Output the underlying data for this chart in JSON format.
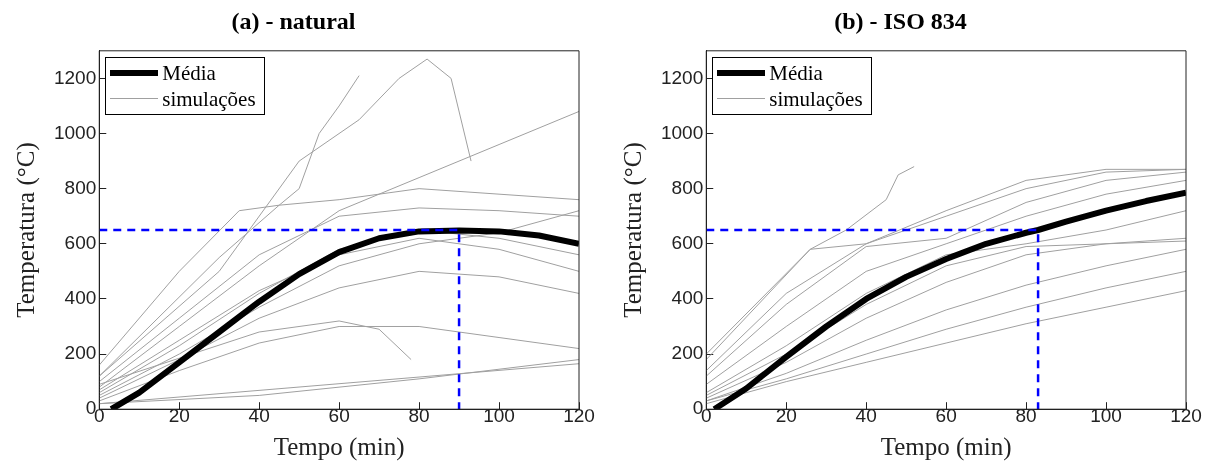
{
  "chart_data": [
    {
      "type": "line",
      "title": "(a) - natural",
      "xlabel": "Tempo (min)",
      "ylabel": "Temperatura (°C)",
      "xlim": [
        0,
        120
      ],
      "ylim": [
        0,
        1300
      ],
      "xticks": [
        0,
        20,
        40,
        60,
        80,
        100,
        120
      ],
      "yticks": [
        0,
        200,
        400,
        600,
        800,
        1000,
        1200
      ],
      "grid": false,
      "legend": "top left",
      "marker": "none",
      "series": [
        {
          "name": "Média",
          "color": "#000000",
          "x": [
            3,
            10,
            20,
            30,
            40,
            50,
            60,
            70,
            80,
            90,
            100,
            110,
            120
          ],
          "values": [
            0,
            60,
            170,
            280,
            390,
            490,
            570,
            620,
            645,
            648,
            645,
            630,
            600
          ]
        },
        {
          "name": "simulações",
          "color": "#a0a0a0",
          "x": [
            0,
            20,
            35,
            45,
            60,
            80,
            100,
            120
          ],
          "values": [
            160,
            500,
            720,
            740,
            760,
            800,
            780,
            760
          ]
        },
        {
          "color": "#a0a0a0",
          "x": [
            0,
            20,
            40,
            60,
            80,
            100,
            120
          ],
          "values": [
            100,
            330,
            560,
            700,
            730,
            720,
            700
          ]
        },
        {
          "color": "#a0a0a0",
          "x": [
            0,
            20,
            40,
            60,
            80,
            100,
            120
          ],
          "values": [
            60,
            230,
            420,
            580,
            650,
            620,
            560
          ]
        },
        {
          "color": "#a0a0a0",
          "x": [
            0,
            20,
            40,
            60,
            80,
            100,
            120
          ],
          "values": [
            40,
            180,
            330,
            440,
            500,
            480,
            420
          ]
        },
        {
          "color": "#a0a0a0",
          "x": [
            0,
            20,
            40,
            60,
            80,
            100,
            120
          ],
          "values": [
            30,
            140,
            240,
            300,
            300,
            260,
            220
          ]
        },
        {
          "color": "#a0a0a0",
          "x": [
            0,
            40,
            80,
            120
          ],
          "values": [
            20,
            50,
            110,
            180
          ]
        },
        {
          "color": "#a0a0a0",
          "x": [
            0,
            120
          ],
          "values": [
            20,
            165
          ]
        },
        {
          "color": "#a0a0a0",
          "x": [
            0,
            30,
            50,
            65,
            75,
            82,
            88,
            93
          ],
          "values": [
            120,
            500,
            900,
            1050,
            1200,
            1270,
            1200,
            900
          ]
        },
        {
          "color": "#a0a0a0",
          "x": [
            0,
            40,
            60,
            70,
            78
          ],
          "values": [
            90,
            280,
            320,
            290,
            180
          ]
        },
        {
          "color": "#a0a0a0",
          "x": [
            0,
            20,
            40,
            60,
            80,
            100,
            120
          ],
          "values": [
            80,
            300,
            520,
            720,
            840,
            960,
            1080
          ]
        },
        {
          "color": "#a0a0a0",
          "x": [
            0,
            20,
            40,
            60,
            80,
            100,
            120
          ],
          "values": [
            70,
            250,
            430,
            560,
            620,
            580,
            500
          ]
        },
        {
          "color": "#a0a0a0",
          "x": [
            0,
            30,
            45,
            50,
            55,
            60,
            65
          ],
          "values": [
            120,
            550,
            740,
            800,
            1000,
            1100,
            1210
          ]
        },
        {
          "color": "#a0a0a0",
          "x": [
            0,
            20,
            40,
            60,
            80,
            100,
            120
          ],
          "values": [
            50,
            200,
            370,
            520,
            600,
            640,
            720
          ]
        },
        {
          "color": "#0000ff",
          "line_style": "dashed",
          "x": [
            0,
            90,
            90
          ],
          "values": [
            650,
            650,
            0
          ]
        }
      ]
    },
    {
      "type": "line",
      "title": "(b) - ISO 834",
      "xlabel": "Tempo (min)",
      "ylabel": "Temperatura (°C)",
      "xlim": [
        0,
        120
      ],
      "ylim": [
        0,
        1300
      ],
      "xticks": [
        0,
        20,
        40,
        60,
        80,
        100,
        120
      ],
      "yticks": [
        0,
        200,
        400,
        600,
        800,
        1000,
        1200
      ],
      "grid": false,
      "legend": "top left",
      "marker": "none",
      "series": [
        {
          "name": "Média",
          "color": "#000000",
          "x": [
            2,
            10,
            20,
            30,
            40,
            50,
            60,
            70,
            80,
            83,
            90,
            100,
            110,
            120
          ],
          "values": [
            0,
            75,
            190,
            300,
            400,
            480,
            545,
            600,
            640,
            650,
            680,
            720,
            755,
            785
          ]
        },
        {
          "name": "simulações",
          "color": "#a0a0a0",
          "x": [
            0,
            26,
            35,
            45,
            48,
            52
          ],
          "values": [
            200,
            580,
            650,
            760,
            850,
            880
          ]
        },
        {
          "color": "#a0a0a0",
          "x": [
            0,
            26,
            40,
            60,
            80,
            100,
            120
          ],
          "values": [
            180,
            580,
            600,
            720,
            830,
            870,
            870
          ]
        },
        {
          "color": "#a0a0a0",
          "x": [
            0,
            20,
            40,
            60,
            80,
            100,
            120
          ],
          "values": [
            120,
            380,
            590,
            620,
            750,
            830,
            860
          ]
        },
        {
          "color": "#a0a0a0",
          "x": [
            0,
            20,
            40,
            60,
            80,
            100,
            120
          ],
          "values": [
            90,
            300,
            500,
            600,
            700,
            780,
            830
          ]
        },
        {
          "color": "#a0a0a0",
          "x": [
            0,
            20,
            40,
            60,
            80,
            100,
            120
          ],
          "values": [
            60,
            230,
            420,
            560,
            600,
            650,
            720
          ]
        },
        {
          "color": "#a0a0a0",
          "x": [
            0,
            20,
            40,
            60,
            80,
            100,
            120
          ],
          "values": [
            40,
            170,
            330,
            460,
            560,
            600,
            620
          ]
        },
        {
          "color": "#a0a0a0",
          "x": [
            0,
            20,
            40,
            60,
            80,
            100,
            120
          ],
          "values": [
            30,
            130,
            250,
            360,
            450,
            520,
            580
          ]
        },
        {
          "color": "#a0a0a0",
          "x": [
            0,
            20,
            40,
            60,
            80,
            100,
            120
          ],
          "values": [
            20,
            100,
            170,
            240,
            310,
            370,
            430
          ]
        },
        {
          "color": "#a0a0a0",
          "x": [
            0,
            20,
            40,
            60,
            80,
            100,
            120
          ],
          "values": [
            30,
            110,
            200,
            290,
            370,
            440,
            500
          ]
        },
        {
          "color": "#a0a0a0",
          "x": [
            0,
            20,
            40,
            60,
            80,
            100,
            120
          ],
          "values": [
            140,
            420,
            600,
            700,
            800,
            860,
            870
          ]
        },
        {
          "color": "#a0a0a0",
          "x": [
            0,
            20,
            40,
            60,
            80,
            100,
            120
          ],
          "values": [
            50,
            200,
            380,
            520,
            590,
            600,
            610
          ]
        },
        {
          "color": "#0000ff",
          "line_style": "dashed",
          "x": [
            0,
            83,
            83
          ],
          "values": [
            650,
            650,
            0
          ]
        }
      ]
    }
  ]
}
